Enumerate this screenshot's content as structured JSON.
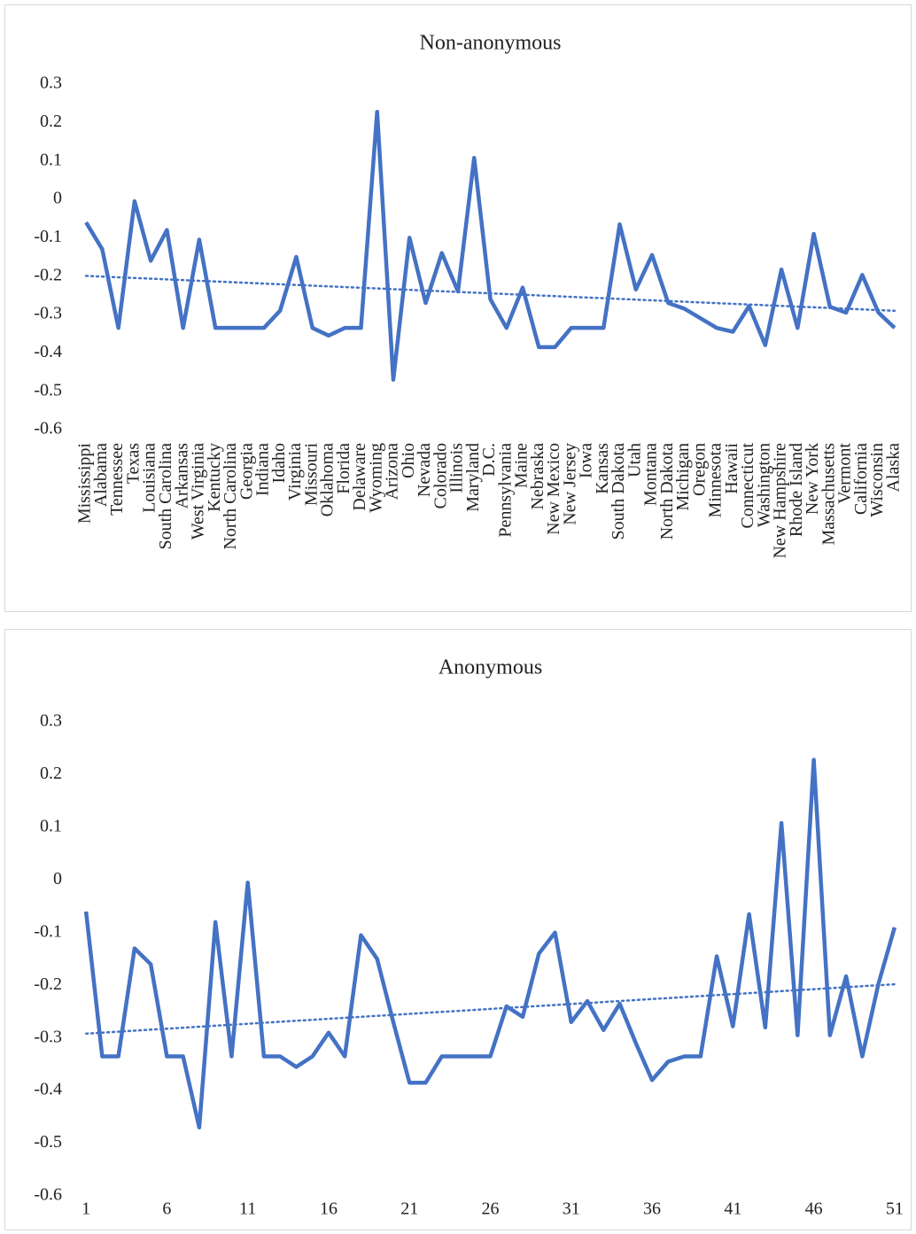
{
  "chart_data": [
    {
      "type": "line",
      "title": "Non-anonymous",
      "color": "#4472c4",
      "trendline": true,
      "category_labels_rotated": true,
      "categories": [
        "Mississippi",
        "Alabama",
        "Tennessee",
        "Texas",
        "Louisiana",
        "South Carolina",
        "Arkansas",
        "West Virginia",
        "Kentucky",
        "North Carolina",
        "Georgia",
        "Indiana",
        "Idaho",
        "Virginia",
        "Missouri",
        "Oklahoma",
        "Florida",
        "Delaware",
        "Wyoming",
        "Arizona",
        "Ohio",
        "Nevada",
        "Colorado",
        "Illinois",
        "Maryland",
        "D.C.",
        "Pennsylvania",
        "Maine",
        "Nebraska",
        "New Mexico",
        "New Jersey",
        "Iowa",
        "Kansas",
        "South Dakota",
        "Utah",
        "Montana",
        "North Dakota",
        "Michigan",
        "Oregon",
        "Minnesota",
        "Hawaii",
        "Connecticut",
        "Washington",
        "New Hampshire",
        "Rhode Island",
        "New York",
        "Massachusetts",
        "Vermont",
        "California",
        "Wisconsin",
        "Alaska"
      ],
      "values": [
        -0.06,
        -0.13,
        -0.335,
        -0.005,
        -0.16,
        -0.08,
        -0.335,
        -0.105,
        -0.335,
        -0.335,
        -0.335,
        -0.335,
        -0.29,
        -0.15,
        -0.335,
        -0.355,
        -0.335,
        -0.335,
        0.228,
        -0.47,
        -0.1,
        -0.27,
        -0.14,
        -0.24,
        0.108,
        -0.26,
        -0.335,
        -0.23,
        -0.385,
        -0.385,
        -0.335,
        -0.335,
        -0.335,
        -0.065,
        -0.235,
        -0.145,
        -0.27,
        -0.285,
        -0.31,
        -0.335,
        -0.345,
        -0.278,
        -0.38,
        -0.183,
        -0.335,
        -0.09,
        -0.28,
        -0.295,
        -0.197,
        -0.295,
        -0.335
      ],
      "ylim": [
        -0.6,
        0.3
      ],
      "yticks": [
        0.3,
        0.2,
        0.1,
        0,
        -0.1,
        -0.2,
        -0.3,
        -0.4,
        -0.5,
        -0.6
      ]
    },
    {
      "type": "line",
      "title": "Anonymous",
      "color": "#4472c4",
      "trendline": true,
      "category_labels_rotated": false,
      "categories": [
        1,
        null,
        null,
        null,
        null,
        6,
        null,
        null,
        null,
        null,
        11,
        null,
        null,
        null,
        null,
        16,
        null,
        null,
        null,
        null,
        21,
        null,
        null,
        null,
        null,
        26,
        null,
        null,
        null,
        null,
        31,
        null,
        null,
        null,
        null,
        36,
        null,
        null,
        null,
        null,
        41,
        null,
        null,
        null,
        null,
        46,
        null,
        null,
        null,
        null,
        51
      ],
      "values": [
        -0.06,
        -0.335,
        -0.335,
        -0.13,
        -0.16,
        -0.335,
        -0.335,
        -0.47,
        -0.08,
        -0.335,
        -0.005,
        -0.335,
        -0.335,
        -0.355,
        -0.335,
        -0.29,
        -0.335,
        -0.105,
        -0.15,
        -0.27,
        -0.385,
        -0.385,
        -0.335,
        -0.335,
        -0.335,
        -0.335,
        -0.24,
        -0.26,
        -0.14,
        -0.1,
        -0.27,
        -0.23,
        -0.285,
        -0.235,
        -0.31,
        -0.38,
        -0.345,
        -0.335,
        -0.335,
        -0.145,
        -0.278,
        -0.065,
        -0.28,
        0.108,
        -0.295,
        0.228,
        -0.295,
        -0.183,
        -0.335,
        -0.197,
        -0.09
      ],
      "ylim": [
        -0.6,
        0.3
      ],
      "yticks": [
        0.3,
        0.2,
        0.1,
        0,
        -0.1,
        -0.2,
        -0.3,
        -0.4,
        -0.5,
        -0.6
      ]
    }
  ]
}
